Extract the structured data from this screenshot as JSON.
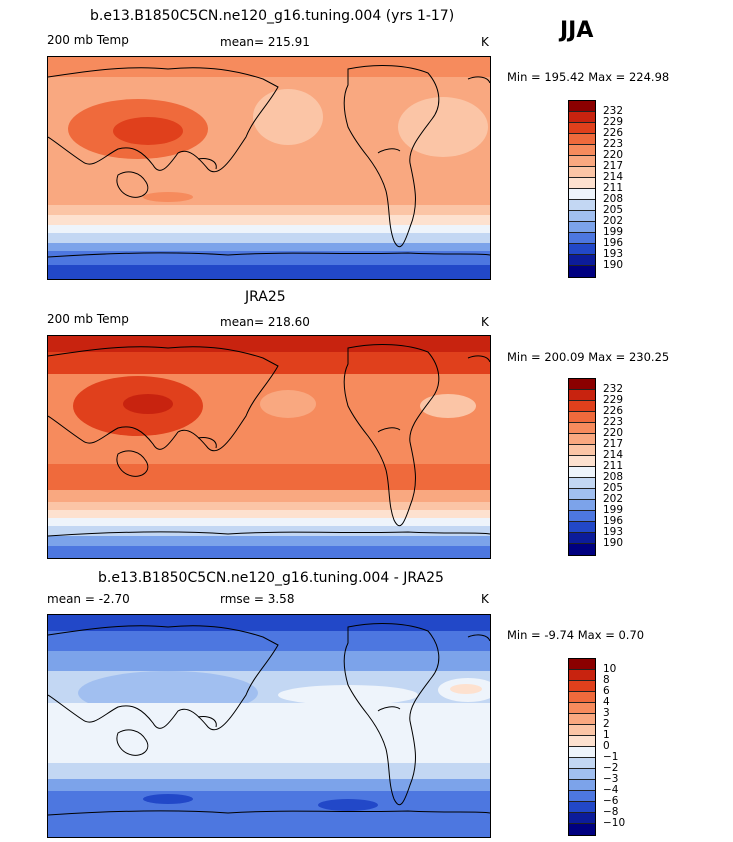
{
  "season": "JJA",
  "panels": [
    {
      "title": "b.e13.B1850C5CN.ne120_g16.tuning.004 (yrs 1-17)",
      "left_label": "200 mb Temp",
      "center_label": "mean= 215.91",
      "units": "K",
      "min_max": "Min = 195.42 Max = 224.98",
      "colorbar": {
        "labels": [
          "232",
          "229",
          "226",
          "223",
          "220",
          "217",
          "214",
          "211",
          "208",
          "205",
          "202",
          "199",
          "196",
          "193",
          "190"
        ],
        "colors": [
          "#8b0000",
          "#c8230f",
          "#e0401c",
          "#ef6a3c",
          "#f68b5d",
          "#f9a880",
          "#fbc5a6",
          "#fde1cf",
          "#eef4fb",
          "#c3d7f3",
          "#a1bff0",
          "#7ca3ea",
          "#4d77e0",
          "#2248c8",
          "#0c1c9a",
          "#000080"
        ]
      },
      "fill": "warm-model"
    },
    {
      "title": "JRA25",
      "left_label": "200 mb Temp",
      "center_label": "mean= 218.60",
      "units": "K",
      "min_max": "Min = 200.09 Max = 230.25",
      "colorbar": {
        "labels": [
          "232",
          "229",
          "226",
          "223",
          "220",
          "217",
          "214",
          "211",
          "208",
          "205",
          "202",
          "199",
          "196",
          "193",
          "190"
        ],
        "colors": [
          "#8b0000",
          "#c8230f",
          "#e0401c",
          "#ef6a3c",
          "#f68b5d",
          "#f9a880",
          "#fbc5a6",
          "#fde1cf",
          "#eef4fb",
          "#c3d7f3",
          "#a1bff0",
          "#7ca3ea",
          "#4d77e0",
          "#2248c8",
          "#0c1c9a",
          "#000080"
        ]
      },
      "fill": "warm-obs"
    },
    {
      "title": "b.e13.B1850C5CN.ne120_g16.tuning.004 - JRA25",
      "left_label": "mean =  -2.70",
      "center_label": "rmse =   3.58",
      "units": "K",
      "min_max": "Min =  -9.74 Max =   0.70",
      "colorbar": {
        "labels": [
          "10",
          "8",
          "6",
          "4",
          "3",
          "2",
          "1",
          "0",
          "−1",
          "−2",
          "−3",
          "−4",
          "−6",
          "−8",
          "−10"
        ],
        "colors": [
          "#8b0000",
          "#c8230f",
          "#e0401c",
          "#ef6a3c",
          "#f68b5d",
          "#f9a880",
          "#fbc5a6",
          "#fde1cf",
          "#eef4fb",
          "#c3d7f3",
          "#a1bff0",
          "#7ca3ea",
          "#4d77e0",
          "#2248c8",
          "#0c1c9a",
          "#000080"
        ]
      },
      "fill": "cool-diff"
    }
  ]
}
